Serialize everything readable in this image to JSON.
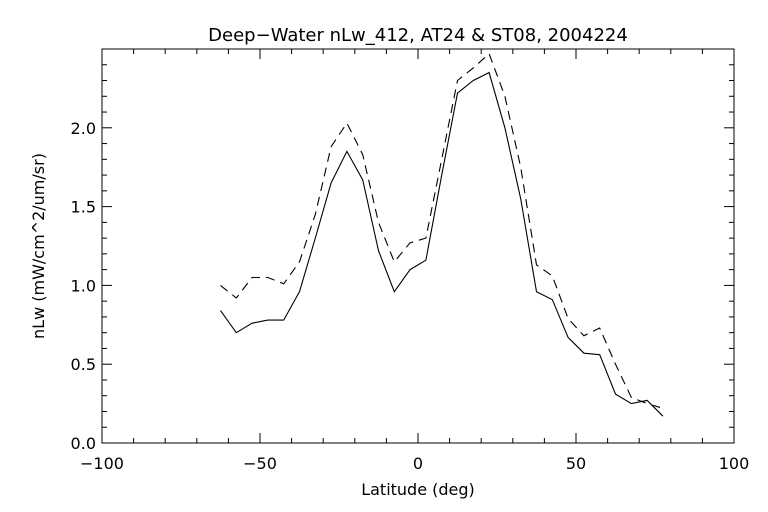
{
  "chart_data": {
    "type": "line",
    "title": "Deep−Water nLw_412, AT24 & ST08, 2004224",
    "xlabel": "Latitude (deg)",
    "ylabel": "nLw (mW/cm^2/um/sr)",
    "xlim": [
      -100,
      100
    ],
    "ylim": [
      0,
      2.5
    ],
    "xticks": [
      -100,
      -50,
      0,
      50,
      100
    ],
    "xtick_labels": [
      "−100",
      "−50",
      "0",
      "50",
      "100"
    ],
    "yticks": [
      0,
      0.5,
      1.0,
      1.5,
      2.0
    ],
    "ytick_labels": [
      "0.0",
      "0.5",
      "1.0",
      "1.5",
      "2.0"
    ],
    "grid": false,
    "x": [
      -62.5,
      -57.5,
      -52.5,
      -47.5,
      -42.5,
      -37.5,
      -32.5,
      -27.5,
      -22.5,
      -17.5,
      -12.5,
      -7.5,
      -2.5,
      2.5,
      7.5,
      12.5,
      17.5,
      22.5,
      27.5,
      32.5,
      37.5,
      42.5,
      47.5,
      52.5,
      57.5,
      62.5,
      67.5,
      72.5,
      77.5
    ],
    "series": [
      {
        "name": "solid",
        "style": "solid",
        "values": [
          0.84,
          0.7,
          0.76,
          0.78,
          0.78,
          0.96,
          1.3,
          1.65,
          1.85,
          1.67,
          1.22,
          0.96,
          1.1,
          1.16,
          1.7,
          2.22,
          2.3,
          2.35,
          2.0,
          1.55,
          0.96,
          0.91,
          0.67,
          0.57,
          0.56,
          0.31,
          0.25,
          0.27,
          0.17
        ]
      },
      {
        "name": "dashed",
        "style": "dashed",
        "values": [
          1.0,
          0.92,
          1.05,
          1.05,
          1.01,
          1.15,
          1.45,
          1.88,
          2.03,
          1.83,
          1.4,
          1.15,
          1.27,
          1.3,
          1.8,
          2.3,
          2.38,
          2.47,
          2.2,
          1.75,
          1.13,
          1.06,
          0.79,
          0.68,
          0.73,
          0.5,
          0.29,
          0.25,
          0.22
        ]
      }
    ]
  }
}
